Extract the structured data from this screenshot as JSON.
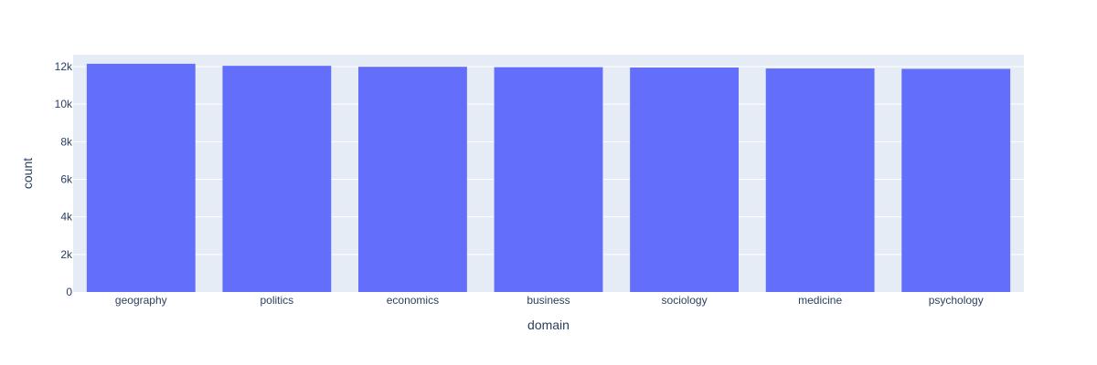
{
  "chart_data": {
    "type": "bar",
    "title": "",
    "xlabel": "domain",
    "ylabel": "count",
    "categories": [
      "geography",
      "politics",
      "economics",
      "business",
      "sociology",
      "medicine",
      "psychology"
    ],
    "values": [
      12150,
      12040,
      11990,
      11970,
      11950,
      11900,
      11880
    ],
    "ylim": [
      0,
      12630
    ],
    "yticks": [
      0,
      2000,
      4000,
      6000,
      8000,
      10000,
      12000
    ],
    "ytick_labels": [
      "0",
      "2k",
      "4k",
      "6k",
      "8k",
      "10k",
      "12k"
    ],
    "grid": true,
    "legend": "none"
  },
  "colors": {
    "bar": "#636efa",
    "plot_bg": "#e5ecf6",
    "grid": "#ffffff",
    "text": "#2a3f5f"
  }
}
